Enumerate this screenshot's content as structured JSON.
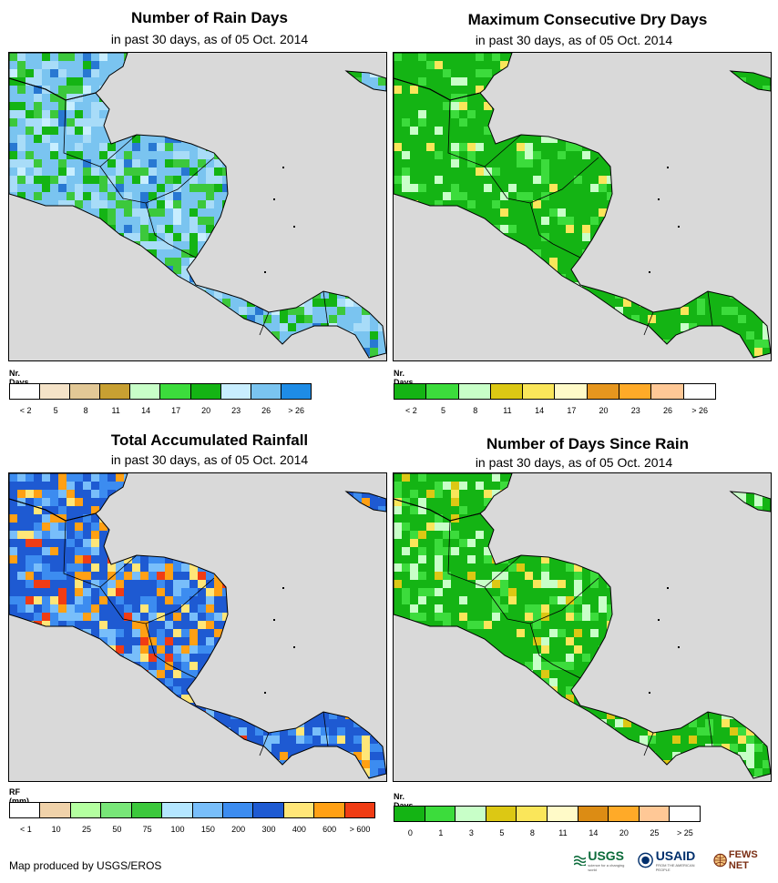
{
  "panels": [
    {
      "title": "Number of Rain Days",
      "subtitle": "in past 30 days, as of 05 Oct. 2014",
      "legend_title": "Nr. Days",
      "legend_colors": [
        "#ffffff",
        "#f5e3c8",
        "#e2c896",
        "#c8a032",
        "#c8ffc8",
        "#3cdc3c",
        "#14b414",
        "#c8eeff",
        "#7ac4f0",
        "#1e8ce6"
      ],
      "legend_labels": [
        "< 2",
        "5",
        "8",
        "11",
        "14",
        "17",
        "20",
        "23",
        "26",
        "> 26"
      ],
      "map_palette": [
        "#7ac4f0",
        "#a8dcf8",
        "#3cc83c",
        "#14b414",
        "#2878d2",
        "#c8eeff"
      ]
    },
    {
      "title": "Maximum Consecutive Dry Days",
      "subtitle": "in past 30 days, as of 05 Oct. 2014",
      "legend_title": "Nr. Days",
      "legend_colors": [
        "#14b414",
        "#3cdc3c",
        "#c8ffc8",
        "#dcc814",
        "#fae65a",
        "#fffac8",
        "#e6961e",
        "#ffaa28",
        "#ffc896",
        "#ffffff"
      ],
      "legend_labels": [
        "< 2",
        "5",
        "8",
        "11",
        "14",
        "17",
        "20",
        "23",
        "26",
        "> 26"
      ],
      "map_palette": [
        "#14b414",
        "#14b414",
        "#3cdc3c",
        "#14b414",
        "#c8ffc8",
        "#fae65a"
      ]
    },
    {
      "title": "Total Accumulated Rainfall",
      "subtitle": "in past 30 days, as of 05 Oct. 2014",
      "legend_title": "RF (mm)",
      "legend_colors": [
        "#ffffff",
        "#f0d2aa",
        "#b4ffa0",
        "#78e678",
        "#3cc83c",
        "#b4e6ff",
        "#78befa",
        "#3c8cf0",
        "#1e5ad2",
        "#ffe678",
        "#ffa014",
        "#f03c14"
      ],
      "legend_labels": [
        "< 1",
        "10",
        "25",
        "50",
        "75",
        "100",
        "150",
        "200",
        "300",
        "400",
        "600",
        "> 600"
      ],
      "map_palette": [
        "#1e5ad2",
        "#3c8cf0",
        "#78befa",
        "#ffa014",
        "#ffe678",
        "#f03c14"
      ]
    },
    {
      "title": "Number of Days Since Rain",
      "subtitle": "in past 30 days, as of 05 Oct. 2014",
      "legend_title": "Nr. Days",
      "legend_colors": [
        "#14b414",
        "#3cdc3c",
        "#c8ffc8",
        "#dcc814",
        "#fae65a",
        "#fffac8",
        "#dc8c14",
        "#ffaa28",
        "#ffc896",
        "#ffffff"
      ],
      "legend_labels": [
        "0",
        "1",
        "3",
        "5",
        "8",
        "11",
        "14",
        "20",
        "25",
        "> 25"
      ],
      "map_palette": [
        "#14b414",
        "#14b414",
        "#3cdc3c",
        "#c8ffc8",
        "#dcc814",
        "#fae65a"
      ]
    }
  ],
  "footer": "Map produced by USGS/EROS",
  "logos": {
    "usgs": "USGS",
    "usgs_tagline": "science for a changing world",
    "usaid": "USAID",
    "usaid_tagline": "FROM THE AMERICAN PEOPLE",
    "fews": "FEWS NET"
  }
}
